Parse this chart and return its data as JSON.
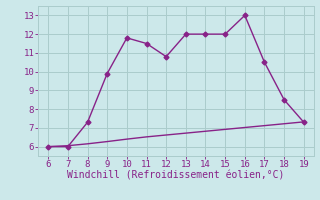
{
  "line1_x": [
    6,
    7,
    8,
    9,
    10,
    11,
    12,
    13,
    14,
    15,
    16,
    17,
    18,
    19
  ],
  "line1_y": [
    6.0,
    6.0,
    7.3,
    9.9,
    11.8,
    11.5,
    10.8,
    12.0,
    12.0,
    12.0,
    13.0,
    10.5,
    8.5,
    7.3
  ],
  "line2_x": [
    6,
    7,
    8,
    9,
    10,
    11,
    12,
    13,
    14,
    15,
    16,
    17,
    18,
    19
  ],
  "line2_y": [
    6.0,
    6.05,
    6.15,
    6.27,
    6.4,
    6.52,
    6.62,
    6.72,
    6.82,
    6.92,
    7.02,
    7.12,
    7.22,
    7.32
  ],
  "line_color": "#882288",
  "bg_color": "#cce8ea",
  "grid_color": "#aacccc",
  "xlabel": "Windchill (Refroidissement éolien,°C)",
  "xlabel_color": "#882288",
  "xlim": [
    5.5,
    19.5
  ],
  "ylim": [
    5.5,
    13.5
  ],
  "xticks": [
    6,
    7,
    8,
    9,
    10,
    11,
    12,
    13,
    14,
    15,
    16,
    17,
    18,
    19
  ],
  "yticks": [
    6,
    7,
    8,
    9,
    10,
    11,
    12,
    13
  ],
  "tick_fontsize": 6.5,
  "xlabel_fontsize": 7,
  "marker": "D",
  "markersize": 2.5,
  "linewidth": 1.0
}
